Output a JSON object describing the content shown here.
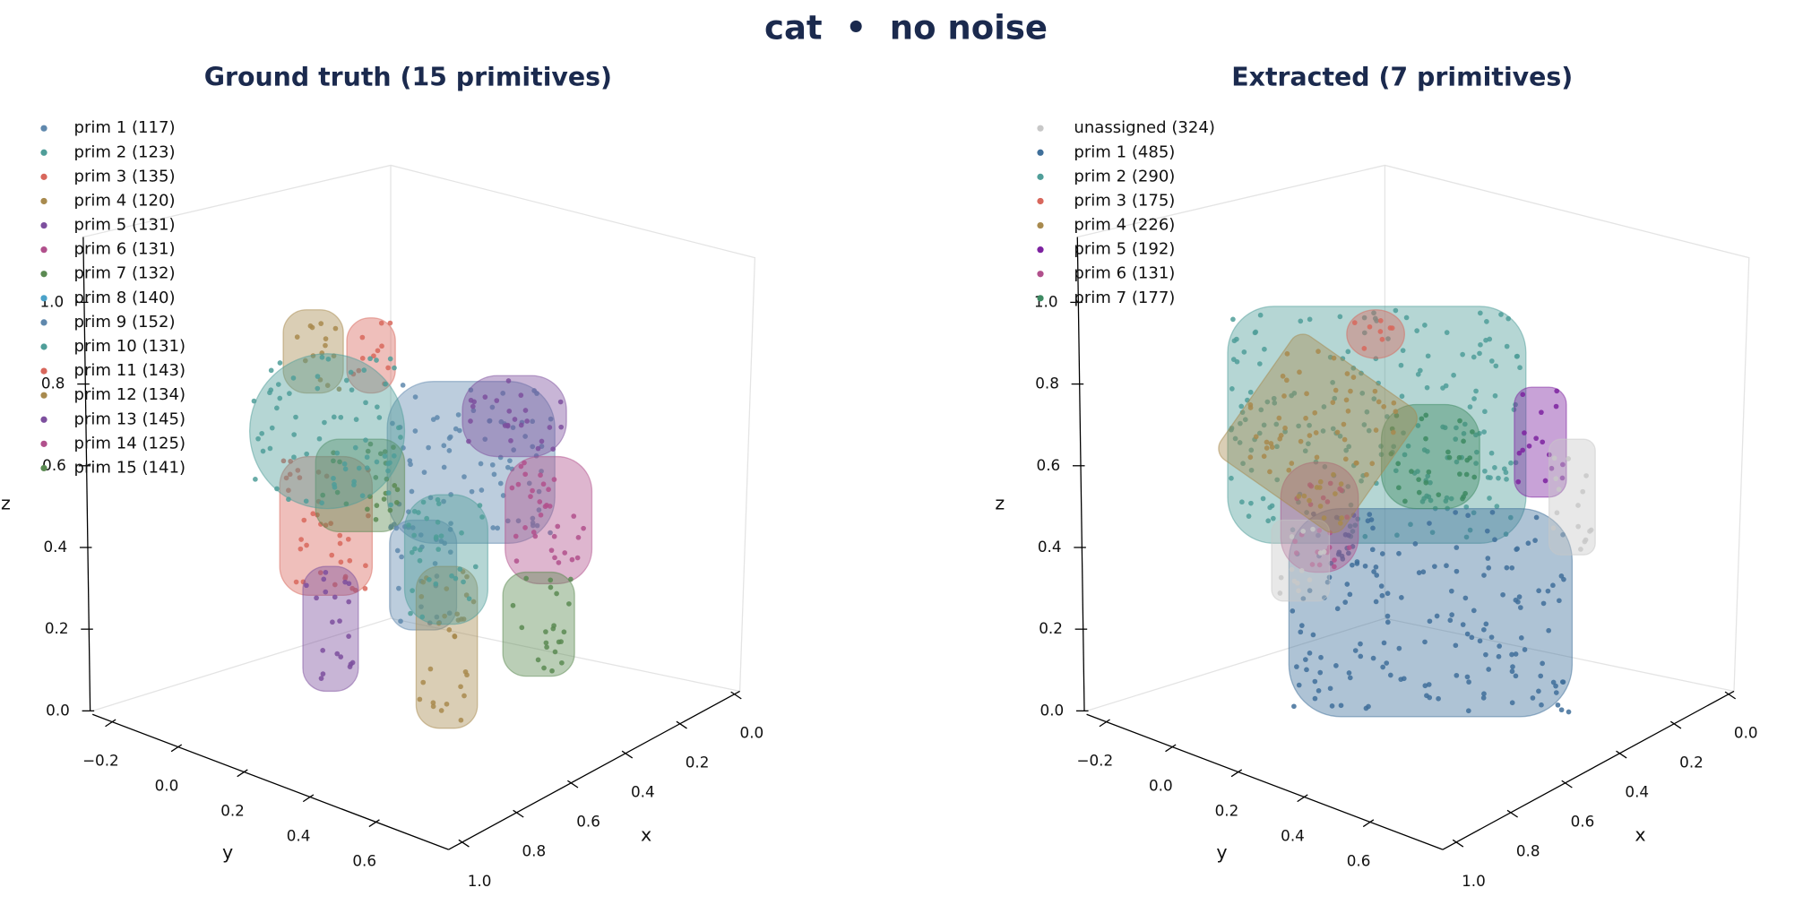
{
  "title": "cat  •  no noise",
  "chart_data": [
    {
      "type": "scatter3d",
      "title": "Ground truth (15 primitives)",
      "xlabel": "x",
      "ylabel": "y",
      "zlabel": "z",
      "xlim": [
        -0.02,
        1.05
      ],
      "ylim": [
        -0.26,
        0.82
      ],
      "zlim": [
        0,
        1.16
      ],
      "xticks": [
        {
          "value": 0,
          "label": "0.0"
        },
        0.2,
        0.4,
        0.6,
        0.8,
        {
          "value": 1,
          "label": "1.0"
        }
      ],
      "yticks": [
        {
          "value": -0.2,
          "label": "−0.2"
        },
        {
          "value": 0,
          "label": "0.0"
        },
        0.2,
        0.4,
        0.6
      ],
      "zticks": [
        {
          "value": 0,
          "label": "0.0"
        },
        0.2,
        0.4,
        0.6,
        0.8,
        {
          "value": 1,
          "label": "1.0"
        }
      ],
      "series": [
        {
          "name": "prim 1 (117)",
          "color": "#5f88ad"
        },
        {
          "name": "prim 2 (123)",
          "color": "#4f9e99"
        },
        {
          "name": "prim 3 (135)",
          "color": "#d8675c"
        },
        {
          "name": "prim 4 (120)",
          "color": "#a88a4e"
        },
        {
          "name": "prim 5 (131)",
          "color": "#7d4f9e"
        },
        {
          "name": "prim 6 (131)",
          "color": "#b1508c"
        },
        {
          "name": "prim 7 (132)",
          "color": "#5b8a52"
        },
        {
          "name": "prim 8 (140)",
          "color": "#4aa2c9"
        },
        {
          "name": "prim 9 (152)",
          "color": "#5f88ad"
        },
        {
          "name": "prim 10 (131)",
          "color": "#4f9e99"
        },
        {
          "name": "prim 11 (143)",
          "color": "#d8675c"
        },
        {
          "name": "prim 12 (134)",
          "color": "#a88a4e"
        },
        {
          "name": "prim 13 (145)",
          "color": "#7d4f9e"
        },
        {
          "name": "prim 14 (125)",
          "color": "#b1508c"
        },
        {
          "name": "prim 15 (141)",
          "color": "#5b8a52"
        }
      ]
    },
    {
      "type": "scatter3d",
      "title": "Extracted (7 primitives)",
      "xlabel": "x",
      "ylabel": "y",
      "zlabel": "z",
      "xlim": [
        -0.02,
        1.05
      ],
      "ylim": [
        -0.26,
        0.82
      ],
      "zlim": [
        0,
        1.16
      ],
      "xticks": [
        {
          "value": 0,
          "label": "0.0"
        },
        0.2,
        0.4,
        0.6,
        0.8,
        {
          "value": 1,
          "label": "1.0"
        }
      ],
      "yticks": [
        {
          "value": -0.2,
          "label": "−0.2"
        },
        {
          "value": 0,
          "label": "0.0"
        },
        0.2,
        0.4,
        0.6
      ],
      "zticks": [
        {
          "value": 0,
          "label": "0.0"
        },
        0.2,
        0.4,
        0.6,
        0.8,
        {
          "value": 1,
          "label": "1.0"
        }
      ],
      "series": [
        {
          "name": "unassigned (324)",
          "color": "#c8c8c8"
        },
        {
          "name": "prim 1 (485)",
          "color": "#3f6f9a"
        },
        {
          "name": "prim 2 (290)",
          "color": "#4f9e99"
        },
        {
          "name": "prim 3 (175)",
          "color": "#d8675c"
        },
        {
          "name": "prim 4 (226)",
          "color": "#a88a4e"
        },
        {
          "name": "prim 5 (192)",
          "color": "#7d22a0"
        },
        {
          "name": "prim 6 (131)",
          "color": "#b1508c"
        },
        {
          "name": "prim 7 (177)",
          "color": "#3d8a62"
        }
      ]
    }
  ]
}
